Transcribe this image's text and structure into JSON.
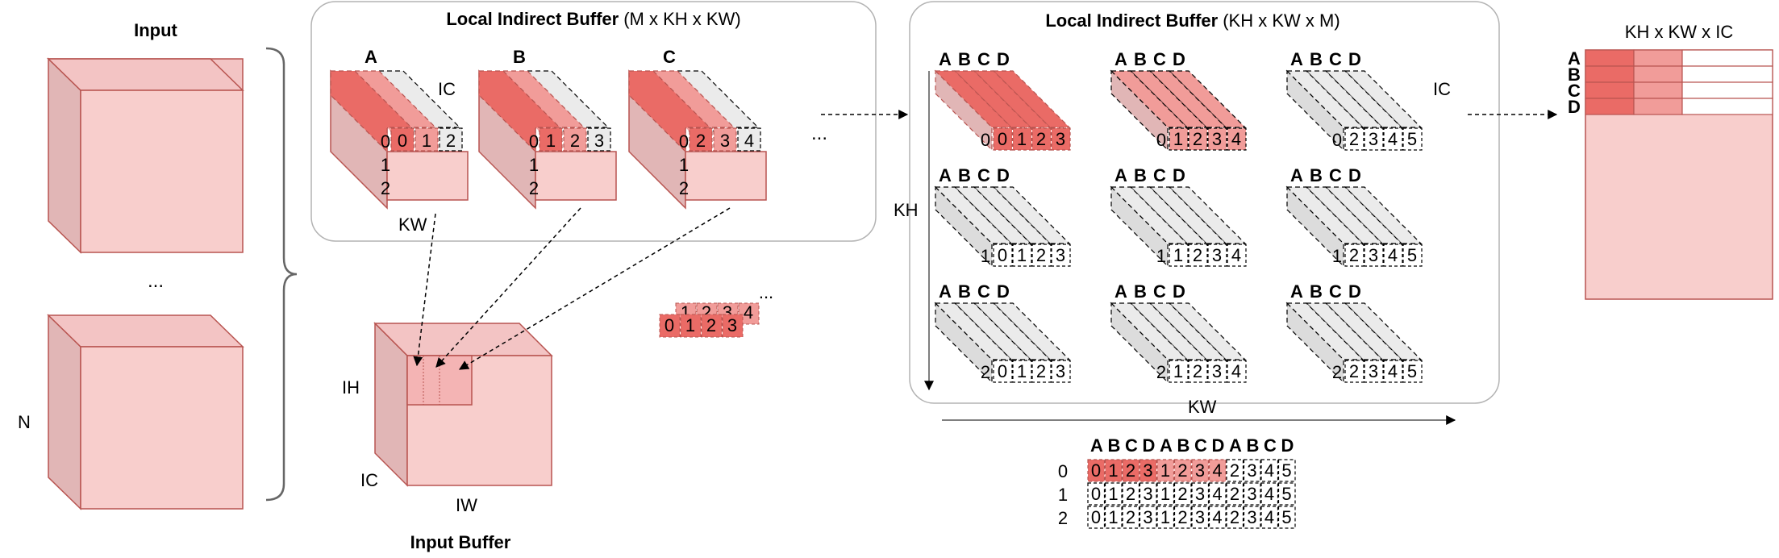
{
  "input": {
    "title": "Input",
    "dots": "...",
    "n_label": "N"
  },
  "input_buffer": {
    "title": "Input Buffer",
    "ih": "IH",
    "ic": "IC",
    "iw": "IW"
  },
  "lib1": {
    "title_bold": "Local Indirect Buffer",
    "title_dims": "(M x KH x KW)",
    "ic_label": "IC",
    "kw_label": "KW",
    "blocks": [
      {
        "letter": "A",
        "cells": [
          "0",
          "1",
          "2"
        ]
      },
      {
        "letter": "B",
        "cells": [
          "1",
          "2",
          "3"
        ]
      },
      {
        "letter": "C",
        "cells": [
          "2",
          "3",
          "4"
        ]
      }
    ],
    "rows": [
      "0",
      "1",
      "2"
    ],
    "dots": "..."
  },
  "mini_row": {
    "back": [
      "1",
      "2",
      "3",
      "4"
    ],
    "front": [
      "0",
      "1",
      "2",
      "3"
    ],
    "dots": "..."
  },
  "lib2": {
    "title_bold": "Local Indirect Buffer",
    "title_dims": "(KH x KW x M)",
    "ic_label": "IC",
    "kh_label": "KH",
    "kw_label": "KW",
    "letters": [
      "A",
      "B",
      "C",
      "D"
    ],
    "blocks": [
      {
        "row": "0",
        "cells": [
          "0",
          "1",
          "2",
          "3"
        ]
      },
      {
        "row": "0",
        "cells": [
          "1",
          "2",
          "3",
          "4"
        ]
      },
      {
        "row": "0",
        "cells": [
          "2",
          "3",
          "4",
          "5"
        ]
      },
      {
        "row": "1",
        "cells": [
          "0",
          "1",
          "2",
          "3"
        ]
      },
      {
        "row": "1",
        "cells": [
          "1",
          "2",
          "3",
          "4"
        ]
      },
      {
        "row": "1",
        "cells": [
          "2",
          "3",
          "4",
          "5"
        ]
      },
      {
        "row": "2",
        "cells": [
          "0",
          "1",
          "2",
          "3"
        ]
      },
      {
        "row": "2",
        "cells": [
          "1",
          "2",
          "3",
          "4"
        ]
      },
      {
        "row": "2",
        "cells": [
          "2",
          "3",
          "4",
          "5"
        ]
      }
    ]
  },
  "flat_table": {
    "header": [
      "A",
      "B",
      "C",
      "D",
      "A",
      "B",
      "C",
      "D",
      "A",
      "B",
      "C",
      "D"
    ],
    "rows": [
      {
        "label": "0",
        "cells": [
          "0",
          "1",
          "2",
          "3",
          "1",
          "2",
          "3",
          "4",
          "2",
          "3",
          "4",
          "5"
        ]
      },
      {
        "label": "1",
        "cells": [
          "0",
          "1",
          "2",
          "3",
          "1",
          "2",
          "3",
          "4",
          "2",
          "3",
          "4",
          "5"
        ]
      },
      {
        "label": "2",
        "cells": [
          "0",
          "1",
          "2",
          "3",
          "1",
          "2",
          "3",
          "4",
          "2",
          "3",
          "4",
          "5"
        ]
      }
    ]
  },
  "result": {
    "title": "KH x KW x IC",
    "rows": [
      "A",
      "B",
      "C",
      "D"
    ]
  },
  "colors": {
    "face": "#f8cecc",
    "side": "#e1b6b6",
    "top": "#f3c4c4",
    "stroke": "#b85450",
    "dark": "#ea6b66",
    "medium": "#f19c99",
    "gray": "#ebebeb",
    "gray_side": "#dcdcdc"
  }
}
